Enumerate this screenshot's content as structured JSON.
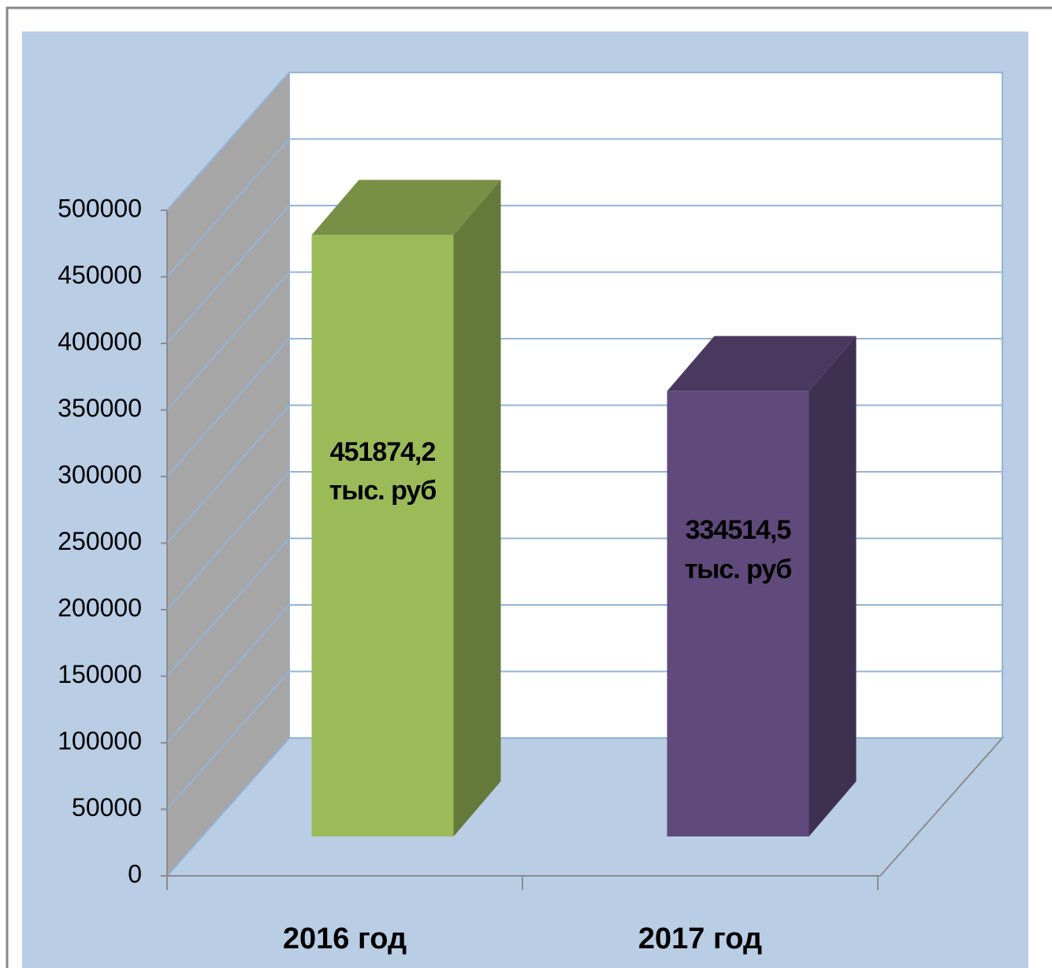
{
  "chart_data": {
    "type": "bar3d",
    "categories": [
      "2016 год",
      "2017 год"
    ],
    "values": [
      451874.2,
      334514.5
    ],
    "value_labels": [
      "451874,2 тыс. руб",
      "334514,5 тыс. руб"
    ],
    "colors": [
      "#9bbb59",
      "#604a7b"
    ],
    "ylim": [
      0,
      500000
    ],
    "yticks": [
      0,
      50000,
      100000,
      150000,
      200000,
      250000,
      300000,
      350000,
      400000,
      450000,
      500000
    ],
    "grid": true
  }
}
